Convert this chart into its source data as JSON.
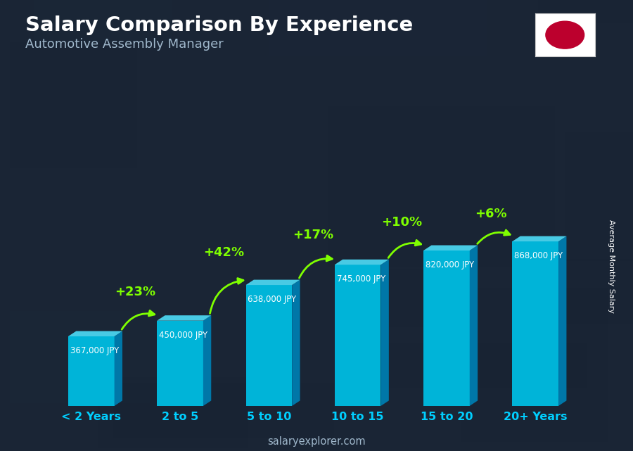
{
  "title": "Salary Comparison By Experience",
  "subtitle": "Automotive Assembly Manager",
  "ylabel": "Average Monthly Salary",
  "footer": "salaryexplorer.com",
  "categories": [
    "< 2 Years",
    "2 to 5",
    "5 to 10",
    "10 to 15",
    "15 to 20",
    "20+ Years"
  ],
  "values": [
    367000,
    450000,
    638000,
    745000,
    820000,
    868000
  ],
  "value_labels": [
    "367,000 JPY",
    "450,000 JPY",
    "638,000 JPY",
    "745,000 JPY",
    "820,000 JPY",
    "868,000 JPY"
  ],
  "pct_labels": [
    "+23%",
    "+42%",
    "+17%",
    "+10%",
    "+6%"
  ],
  "bar_face_color": "#00b4d8",
  "bar_side_color": "#0077a8",
  "bar_top_color": "#48cae4",
  "bg_dark": "#1a2535",
  "title_color": "#ffffff",
  "subtitle_color": "#a0b8cc",
  "tick_color": "#00cfff",
  "value_label_color": "#ffffff",
  "pct_color": "#7fff00",
  "arrow_color": "#7fff00",
  "ylabel_color": "#ffffff",
  "footer_color": "#a0b8cc",
  "figsize": [
    9.0,
    6.41
  ],
  "dpi": 100
}
